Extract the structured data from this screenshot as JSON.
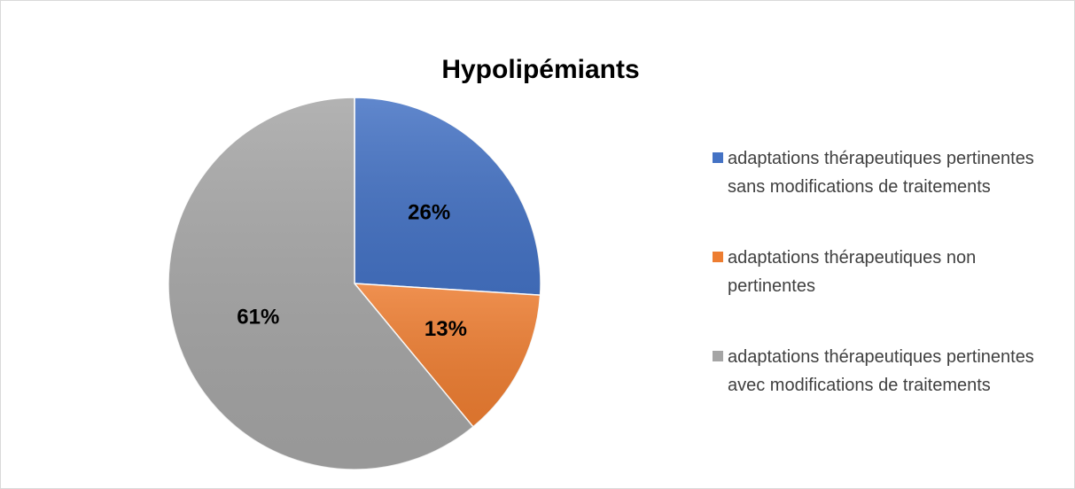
{
  "chart_data": {
    "type": "pie",
    "title": "Hypolipémiants",
    "categories": [
      "adaptations thérapeutiques pertinentes sans modifications de traitements",
      "adaptations thérapeutiques non pertinentes",
      "adaptations thérapeutiques pertinentes avec modifications de traitements"
    ],
    "values": [
      26,
      13,
      61
    ],
    "value_labels": [
      "26%",
      "13%",
      "61%"
    ],
    "colors": [
      "#4472c4",
      "#ed7d31",
      "#a5a5a5"
    ],
    "legend": "right"
  }
}
